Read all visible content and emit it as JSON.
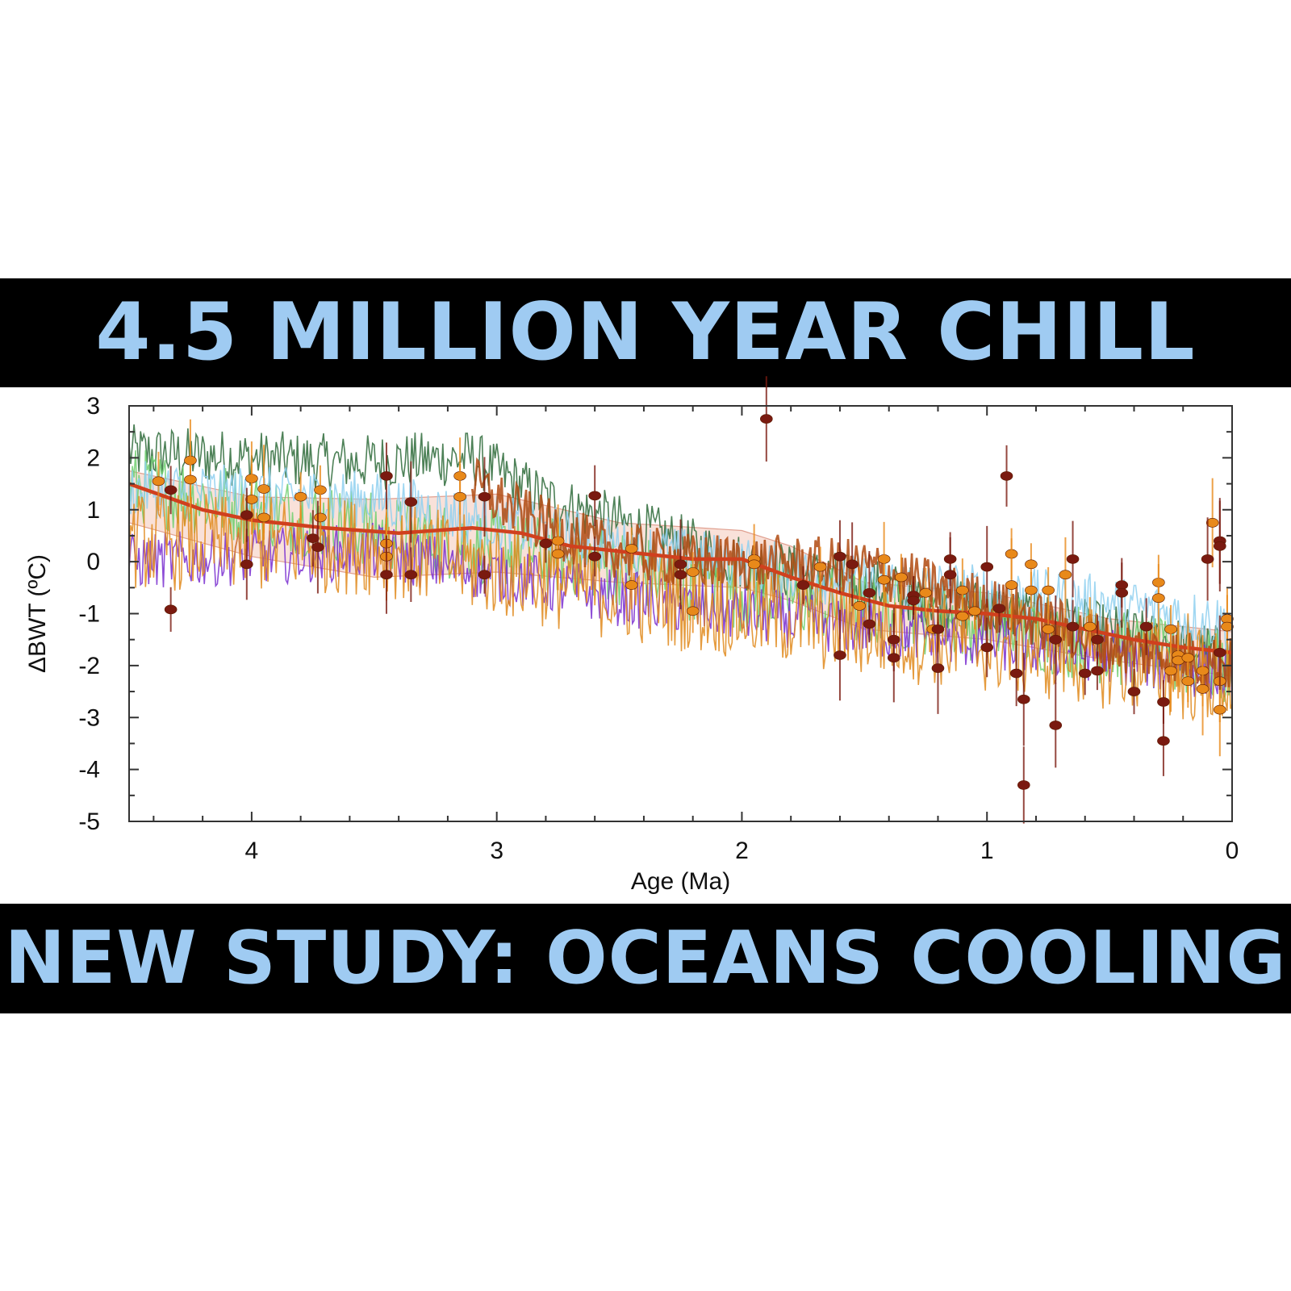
{
  "banners": {
    "top": "4.5 MILLION YEAR CHILL",
    "bottom": "NEW STUDY: OCEANS COOLING"
  },
  "colors": {
    "banner_bg": "#000000",
    "banner_text": "#9fcbf2",
    "series_dark_green": "#2e6b3a",
    "series_light_green": "#6fcf6f",
    "series_light_blue": "#8fd0f0",
    "series_purple": "#7a2fd0",
    "series_orange": "#e08a1c",
    "series_brown": "#b04a10",
    "trend_red": "#d0401e",
    "markers_dark": "#7a1a10",
    "markers_orange": "#e8891a"
  },
  "chart_data": {
    "type": "line",
    "xlabel": "Age (Ma)",
    "ylabel": "ΔBWT (ºC)",
    "xlim": [
      4.5,
      0
    ],
    "ylim": [
      -5,
      3
    ],
    "x_reversed": true,
    "xticks": [
      {
        "value": 4,
        "label": "4"
      },
      {
        "value": 3,
        "label": "3"
      },
      {
        "value": 2,
        "label": "2"
      },
      {
        "value": 1,
        "label": "1"
      },
      {
        "value": 0,
        "label": "0"
      }
    ],
    "yticks": [
      {
        "value": 3,
        "label": "3"
      },
      {
        "value": 2,
        "label": "2"
      },
      {
        "value": 1,
        "label": "1"
      },
      {
        "value": 0,
        "label": "0"
      },
      {
        "value": -1,
        "label": "-1"
      },
      {
        "value": -2,
        "label": "-2"
      },
      {
        "value": -3,
        "label": "-3"
      },
      {
        "value": -4,
        "label": "-4"
      },
      {
        "value": -5,
        "label": "-5"
      }
    ],
    "grid": false,
    "series": [
      {
        "color": "#2e6b3a",
        "mean": [
          [
            4.5,
            2.1
          ],
          [
            3.6,
            1.9
          ],
          [
            3.1,
            2.0
          ],
          [
            2.8,
            1.2
          ],
          [
            2.0,
            0.0
          ],
          [
            1.0,
            -0.9
          ],
          [
            0.0,
            -1.8
          ]
        ],
        "amplitude": 0.55
      },
      {
        "color": "#6fcf6f",
        "mean": [
          [
            4.5,
            1.5
          ],
          [
            3.5,
            0.6
          ],
          [
            2.6,
            0.0
          ],
          [
            2.0,
            -0.6
          ],
          [
            1.0,
            -1.2
          ],
          [
            0.0,
            -2.1
          ]
        ],
        "amplitude": 0.75
      },
      {
        "color": "#8fd0f0",
        "mean": [
          [
            4.5,
            1.4
          ],
          [
            3.5,
            1.2
          ],
          [
            2.5,
            0.3
          ],
          [
            1.5,
            -0.4
          ],
          [
            0.5,
            -0.8
          ],
          [
            0.0,
            -1.2
          ]
        ],
        "amplitude": 0.55
      },
      {
        "color": "#7a2fd0",
        "mean": [
          [
            4.5,
            0.0
          ],
          [
            3.5,
            0.2
          ],
          [
            2.5,
            -0.7
          ],
          [
            1.5,
            -1.3
          ],
          [
            0.5,
            -1.8
          ],
          [
            0.0,
            -2.2
          ]
        ],
        "amplitude": 0.55
      },
      {
        "color": "#e08a1c",
        "mean": [
          [
            4.5,
            0.4
          ],
          [
            3.5,
            0.3
          ],
          [
            2.5,
            -0.6
          ],
          [
            1.5,
            -1.3
          ],
          [
            0.5,
            -1.9
          ],
          [
            0.0,
            -2.3
          ]
        ],
        "amplitude": 0.95
      },
      {
        "color": "#b04a10",
        "mean": [
          [
            3.1,
            1.5
          ],
          [
            2.9,
            0.9
          ],
          [
            2.6,
            0.3
          ],
          [
            2.2,
            0.0
          ],
          [
            2.0,
            0.0
          ],
          [
            1.5,
            -0.1
          ],
          [
            1.0,
            -0.8
          ],
          [
            0.5,
            -1.6
          ],
          [
            0.0,
            -2.0
          ]
        ],
        "amplitude": 0.55
      }
    ],
    "trend": {
      "color": "#d0401e",
      "points": [
        [
          4.5,
          1.5
        ],
        [
          4.2,
          1.0
        ],
        [
          4.0,
          0.8
        ],
        [
          3.7,
          0.65
        ],
        [
          3.4,
          0.55
        ],
        [
          3.1,
          0.65
        ],
        [
          2.9,
          0.55
        ],
        [
          2.7,
          0.3
        ],
        [
          2.4,
          0.15
        ],
        [
          2.2,
          0.05
        ],
        [
          2.0,
          0.05
        ],
        [
          1.8,
          -0.3
        ],
        [
          1.6,
          -0.6
        ],
        [
          1.4,
          -0.85
        ],
        [
          1.2,
          -0.95
        ],
        [
          1.0,
          -1.0
        ],
        [
          0.8,
          -1.1
        ],
        [
          0.6,
          -1.3
        ],
        [
          0.4,
          -1.5
        ],
        [
          0.2,
          -1.65
        ],
        [
          0.0,
          -1.75
        ]
      ],
      "band_upper": [
        [
          4.5,
          1.75
        ],
        [
          4.0,
          1.25
        ],
        [
          3.5,
          1.2
        ],
        [
          3.0,
          1.3
        ],
        [
          2.5,
          0.75
        ],
        [
          2.0,
          0.6
        ],
        [
          1.8,
          0.3
        ],
        [
          1.5,
          -0.4
        ],
        [
          1.0,
          -0.6
        ],
        [
          0.5,
          -1.1
        ],
        [
          0.0,
          -1.35
        ]
      ],
      "band_lower": [
        [
          4.5,
          0.75
        ],
        [
          4.0,
          0.1
        ],
        [
          3.5,
          -0.3
        ],
        [
          3.0,
          -0.2
        ],
        [
          2.5,
          -0.4
        ],
        [
          2.0,
          -0.5
        ],
        [
          1.8,
          -0.75
        ],
        [
          1.5,
          -1.3
        ],
        [
          1.0,
          -1.5
        ],
        [
          0.5,
          -1.9
        ],
        [
          0.0,
          -2.2
        ]
      ]
    },
    "points_dark": [
      [
        4.33,
        1.38
      ],
      [
        4.33,
        -0.92
      ],
      [
        4.02,
        0.9
      ],
      [
        4.02,
        -0.05
      ],
      [
        3.75,
        0.45
      ],
      [
        3.73,
        0.28
      ],
      [
        3.45,
        1.65
      ],
      [
        3.45,
        -0.25
      ],
      [
        3.35,
        1.15
      ],
      [
        3.35,
        -0.25
      ],
      [
        3.05,
        1.25
      ],
      [
        3.05,
        -0.25
      ],
      [
        2.8,
        0.35
      ],
      [
        2.6,
        1.27
      ],
      [
        2.6,
        0.1
      ],
      [
        2.25,
        -0.05
      ],
      [
        2.25,
        -0.25
      ],
      [
        1.9,
        2.75
      ],
      [
        1.75,
        -0.45
      ],
      [
        1.6,
        0.1
      ],
      [
        1.6,
        -1.8
      ],
      [
        1.55,
        -0.05
      ],
      [
        1.48,
        -0.6
      ],
      [
        1.48,
        -1.2
      ],
      [
        1.38,
        -1.5
      ],
      [
        1.38,
        -1.85
      ],
      [
        1.3,
        -0.65
      ],
      [
        1.3,
        -0.75
      ],
      [
        1.2,
        -1.3
      ],
      [
        1.2,
        -2.05
      ],
      [
        1.15,
        0.05
      ],
      [
        1.15,
        -0.25
      ],
      [
        1.0,
        -0.1
      ],
      [
        1.0,
        -1.65
      ],
      [
        0.95,
        -0.9
      ],
      [
        0.92,
        1.65
      ],
      [
        0.88,
        -2.15
      ],
      [
        0.85,
        -2.65
      ],
      [
        0.85,
        -4.3
      ],
      [
        0.72,
        -1.5
      ],
      [
        0.72,
        -3.15
      ],
      [
        0.65,
        0.05
      ],
      [
        0.65,
        -1.25
      ],
      [
        0.6,
        -2.15
      ],
      [
        0.55,
        -1.5
      ],
      [
        0.55,
        -2.1
      ],
      [
        0.45,
        -0.45
      ],
      [
        0.45,
        -0.6
      ],
      [
        0.4,
        -2.5
      ],
      [
        0.35,
        -1.25
      ],
      [
        0.28,
        -2.7
      ],
      [
        0.28,
        -3.45
      ],
      [
        0.1,
        0.05
      ],
      [
        0.05,
        0.4
      ],
      [
        0.05,
        0.3
      ],
      [
        0.05,
        -1.75
      ]
    ],
    "points_orange": [
      [
        4.38,
        1.55
      ],
      [
        4.25,
        1.95
      ],
      [
        4.25,
        1.58
      ],
      [
        4.0,
        1.6
      ],
      [
        4.0,
        1.2
      ],
      [
        3.95,
        1.4
      ],
      [
        3.95,
        0.85
      ],
      [
        3.8,
        1.25
      ],
      [
        3.72,
        1.38
      ],
      [
        3.72,
        0.85
      ],
      [
        3.45,
        0.35
      ],
      [
        3.45,
        0.1
      ],
      [
        3.15,
        1.65
      ],
      [
        3.15,
        1.25
      ],
      [
        2.75,
        0.4
      ],
      [
        2.75,
        0.15
      ],
      [
        2.45,
        0.25
      ],
      [
        2.45,
        -0.45
      ],
      [
        2.2,
        -0.2
      ],
      [
        2.2,
        -0.95
      ],
      [
        1.95,
        0.05
      ],
      [
        1.95,
        -0.05
      ],
      [
        1.68,
        -0.1
      ],
      [
        1.52,
        -0.85
      ],
      [
        1.42,
        0.05
      ],
      [
        1.42,
        -0.35
      ],
      [
        1.35,
        -0.3
      ],
      [
        1.25,
        -0.6
      ],
      [
        1.22,
        -1.3
      ],
      [
        1.1,
        -0.55
      ],
      [
        1.1,
        -1.05
      ],
      [
        1.05,
        -0.95
      ],
      [
        0.9,
        0.15
      ],
      [
        0.9,
        -0.45
      ],
      [
        0.82,
        -0.05
      ],
      [
        0.82,
        -0.55
      ],
      [
        0.75,
        -0.55
      ],
      [
        0.75,
        -1.3
      ],
      [
        0.68,
        -0.25
      ],
      [
        0.58,
        -1.25
      ],
      [
        0.3,
        -0.4
      ],
      [
        0.3,
        -0.7
      ],
      [
        0.25,
        -1.3
      ],
      [
        0.25,
        -2.1
      ],
      [
        0.22,
        -1.8
      ],
      [
        0.22,
        -1.9
      ],
      [
        0.18,
        -1.85
      ],
      [
        0.18,
        -2.3
      ],
      [
        0.12,
        -2.1
      ],
      [
        0.12,
        -2.45
      ],
      [
        0.08,
        0.75
      ],
      [
        0.05,
        -2.3
      ],
      [
        0.05,
        -2.85
      ],
      [
        0.02,
        -1.1
      ],
      [
        0.02,
        -1.25
      ]
    ]
  }
}
